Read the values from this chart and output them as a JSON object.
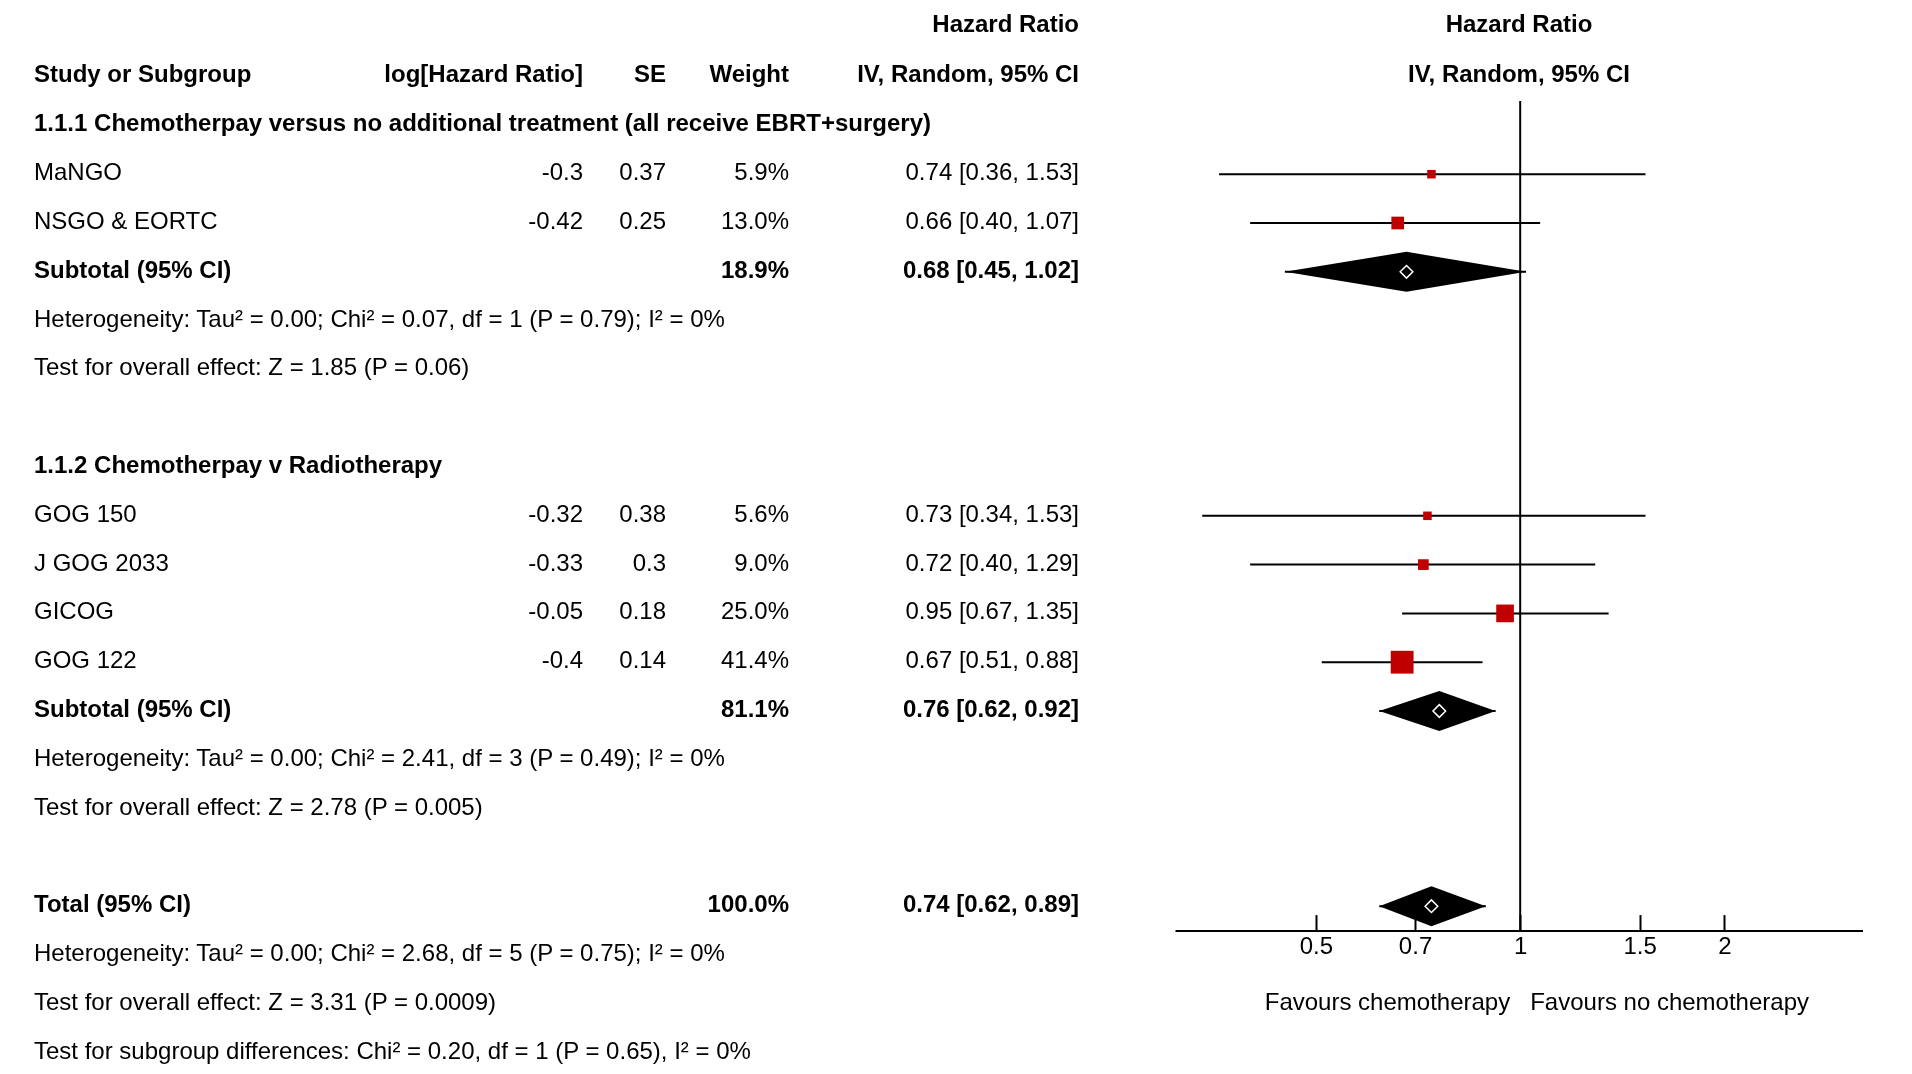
{
  "chart_data": [
    {
      "type": "other",
      "categories": [
        "Study or Subgroup",
        "log[Hazard Ratio]",
        "SE",
        "Weight",
        "Hazard Ratio\nIV, Random, 95% CI"
      ],
      "y_categories": [
        "1.1.1 Chemotherpay versus no additional treatment (all receive EBRT+surgery)",
        "MaNGO",
        "NSGO & EORTC",
        "Subtotal (95% CI)",
        "Heterogeneity: Tau² = 0.00; Chi² = 0.07, df = 1 (P = 0.79); I² = 0%",
        "Test for overall effect: Z = 1.85 (P = 0.06)",
        null,
        "1.1.2 Chemotherpay v Radiotherapy",
        "GOG 150",
        "J GOG 2033",
        "GICOG",
        "GOG 122",
        "Subtotal (95% CI)",
        "Heterogeneity: Tau² = 0.00; Chi² = 2.41, df = 3 (P = 0.49); I² = 0%",
        "Test for overall effect: Z = 2.78 (P = 0.005)",
        null,
        "Total (95% CI)",
        "Heterogeneity: Tau² = 0.00; Chi² = 2.68, df = 5 (P = 0.75); I² = 0%",
        "Test for overall effect: Z = 3.31 (P = 0.0009)",
        "Test for subgroup differences: Chi² = 0.20, df = 1 (P = 0.65), I² = 0%"
      ],
      "cell_labels": [
        [
          null,
          null,
          null,
          null
        ],
        [
          "-0.3",
          "0.37",
          "5.9%",
          "0.74 [0.36, 1.53]"
        ],
        [
          "-0.42",
          "0.25",
          "13.0%",
          "0.66 [0.40, 1.07]"
        ],
        [
          null,
          null,
          "18.9%",
          "0.68 [0.45, 1.02]"
        ],
        [
          null,
          null,
          null,
          null
        ],
        [
          null,
          null,
          null,
          null
        ],
        [
          null,
          null,
          null,
          null
        ],
        [
          null,
          null,
          null,
          null
        ],
        [
          "-0.32",
          "0.38",
          "5.6%",
          "0.73 [0.34, 1.53]"
        ],
        [
          "-0.33",
          "0.3",
          "9.0%",
          "0.72 [0.40, 1.29]"
        ],
        [
          "-0.05",
          "0.18",
          "25.0%",
          "0.95 [0.67, 1.35]"
        ],
        [
          "-0.4",
          "0.14",
          "41.4%",
          "0.67 [0.51, 0.88]"
        ],
        [
          null,
          null,
          "81.1%",
          "0.76 [0.62, 0.92]"
        ],
        [
          null,
          null,
          null,
          null
        ],
        [
          null,
          null,
          null,
          null
        ],
        [
          null,
          null,
          null,
          null
        ],
        [
          null,
          null,
          "100.0%",
          "0.74 [0.62, 0.89]"
        ],
        [
          null,
          null,
          null,
          null
        ],
        [
          null,
          null,
          null,
          null
        ],
        [
          null,
          null,
          null,
          null
        ]
      ]
    },
    {
      "type": "scatter",
      "orientation": "horizontal",
      "title": "Hazard Ratio\nIV, Random, 95% CI",
      "categories": [
        null,
        null,
        null,
        null,
        null,
        null,
        null,
        null,
        null,
        null,
        null,
        null,
        null,
        null,
        null,
        null,
        null
      ],
      "log": "x",
      "xlim": [
        0.31,
        3.2
      ],
      "xticks": [
        0.5,
        0.7,
        1,
        1.5,
        2
      ],
      "ref_lines": [
        {
          "axis": "x",
          "value": 1
        }
      ],
      "annotations": [
        "Favours chemotherapy",
        "Favours no chemotherapy"
      ],
      "series": [
        {
          "type": "scatter",
          "marker": "square",
          "color": "#c00000",
          "values": [
            null,
            0.74,
            0.66,
            null,
            null,
            null,
            null,
            null,
            0.73,
            0.72,
            0.95,
            0.67,
            null,
            null,
            null,
            null,
            null
          ],
          "sizes": [
            null,
            0.14,
            0.31,
            null,
            null,
            null,
            null,
            null,
            0.14,
            0.22,
            0.6,
            1,
            null,
            null,
            null,
            null,
            null
          ],
          "errors": [
            null,
            [
              0.36,
              1.53
            ],
            [
              0.4,
              1.07
            ],
            null,
            null,
            null,
            null,
            null,
            [
              0.34,
              1.53
            ],
            [
              0.4,
              1.29
            ],
            [
              0.67,
              1.35
            ],
            [
              0.51,
              0.88
            ],
            null,
            null,
            null,
            null,
            null
          ]
        },
        {
          "type": "scatter",
          "marker": "diamond",
          "color": "#000000",
          "values": [
            null,
            null,
            null,
            0.68,
            null,
            null,
            null,
            null,
            null,
            null,
            null,
            null,
            0.76,
            null,
            null,
            null,
            0.74
          ],
          "errors": [
            null,
            null,
            null,
            [
              0.45,
              1.02
            ],
            null,
            null,
            null,
            null,
            null,
            null,
            null,
            null,
            [
              0.62,
              0.92
            ],
            null,
            null,
            null,
            [
              0.62,
              0.89
            ]
          ]
        }
      ]
    }
  ]
}
